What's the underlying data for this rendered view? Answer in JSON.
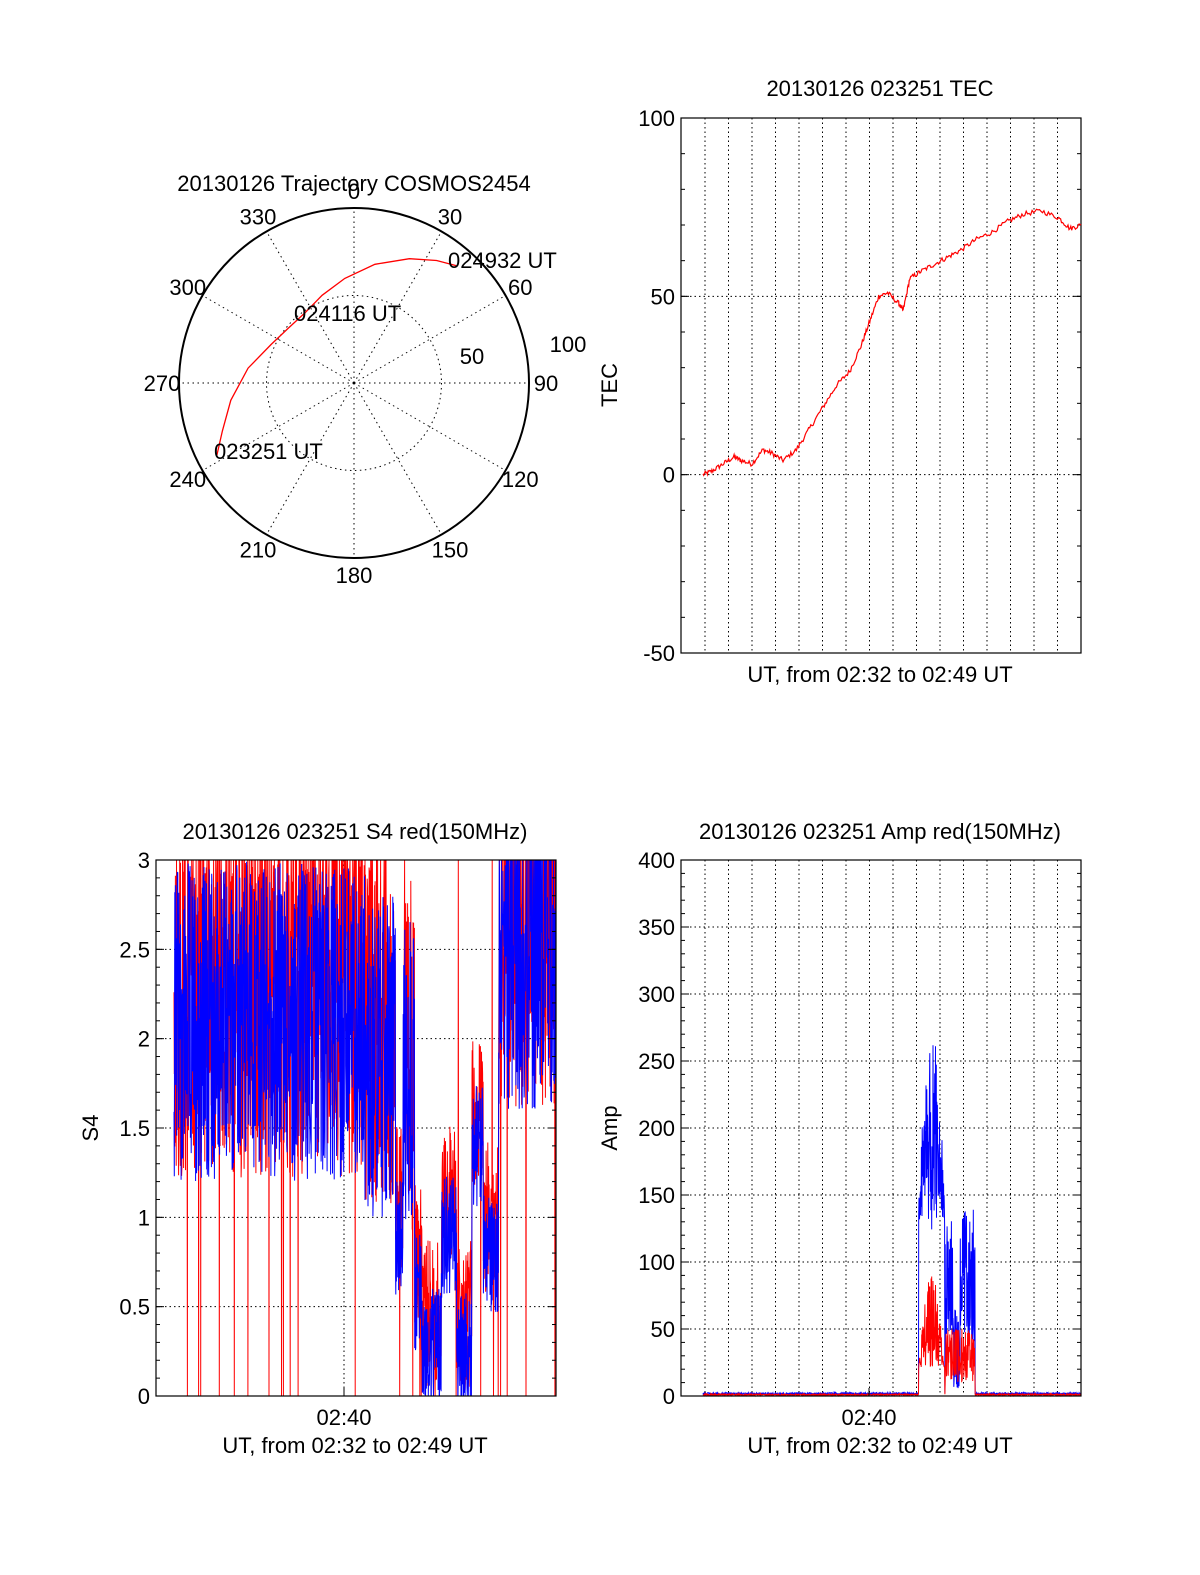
{
  "chart_data": [
    {
      "type": "polar",
      "title": "20130126 Trajectory COSMOS2454",
      "angle_labels": [
        "0",
        "30",
        "60",
        "90",
        "120",
        "150",
        "180",
        "210",
        "240",
        "270",
        "300",
        "330"
      ],
      "radius_labels": [
        "50",
        "100"
      ],
      "trajectory": {
        "color": "#ff0000",
        "points": [
          {
            "az": 242,
            "el": 10
          },
          {
            "az": 250,
            "el": 18
          },
          {
            "az": 262,
            "el": 26
          },
          {
            "az": 278,
            "el": 35
          },
          {
            "az": 295,
            "el": 43
          },
          {
            "az": 310,
            "el": 46
          },
          {
            "az": 325,
            "el": 46
          },
          {
            "az": 340,
            "el": 42
          },
          {
            "az": 355,
            "el": 36
          },
          {
            "az": 10,
            "el": 28
          },
          {
            "az": 24,
            "el": 20
          },
          {
            "az": 34,
            "el": 14
          },
          {
            "az": 41,
            "el": 10
          }
        ]
      },
      "annotations": [
        "024932 UT",
        "024116 UT",
        "023251 UT"
      ]
    },
    {
      "type": "line",
      "title": "20130126 023251 TEC",
      "ylabel": "TEC",
      "xlabel": "UT, from 02:32 to 02:49 UT",
      "ylim": [
        -50,
        100
      ],
      "yticks": [
        "100",
        "50",
        "0",
        "-50"
      ],
      "grid": true,
      "series": [
        {
          "color": "#ff0000",
          "x": [
            0,
            0.4,
            0.9,
            1.4,
            1.7,
            2.2,
            2.7,
            3.1,
            3.6,
            4.2,
            4.8,
            5.4,
            6.0,
            6.6,
            7.1,
            7.5,
            7.9,
            8.3,
            8.8,
            9.0,
            9.3,
            9.8,
            10.4,
            11.0,
            11.6,
            12.3,
            13.0,
            13.7,
            14.4,
            15.2,
            16.0,
            16.5,
            17.0
          ],
          "y": [
            0,
            1,
            3,
            5,
            4,
            3,
            7,
            6,
            4,
            7,
            13,
            19,
            25,
            29,
            36,
            43,
            50,
            51,
            48,
            46,
            55,
            57,
            59,
            61,
            63,
            66,
            68,
            71,
            73,
            74,
            72,
            69,
            70
          ]
        }
      ]
    },
    {
      "type": "line",
      "title": "20130126 023251 S4 red(150MHz)",
      "ylabel": "S4",
      "xlabel": "UT, from 02:32 to 02:49 UT",
      "xtick_label": "02:40",
      "ylim": [
        0,
        3
      ],
      "yticks": [
        "3",
        "2.5",
        "2",
        "1.5",
        "1",
        "0.5",
        "0"
      ],
      "grid": true,
      "series": [
        {
          "color": "#ff0000"
        },
        {
          "color": "#0000ff"
        }
      ]
    },
    {
      "type": "line",
      "title": "20130126 023251 Amp red(150MHz)",
      "ylabel": "Amp",
      "xlabel": "UT, from 02:32 to 02:49 UT",
      "xtick_label": "02:40",
      "ylim": [
        0,
        400
      ],
      "yticks": [
        "400",
        "350",
        "300",
        "250",
        "200",
        "150",
        "100",
        "50",
        "0"
      ],
      "grid": true,
      "series": [
        {
          "color": "#0000ff"
        },
        {
          "color": "#ff0000"
        }
      ]
    }
  ]
}
